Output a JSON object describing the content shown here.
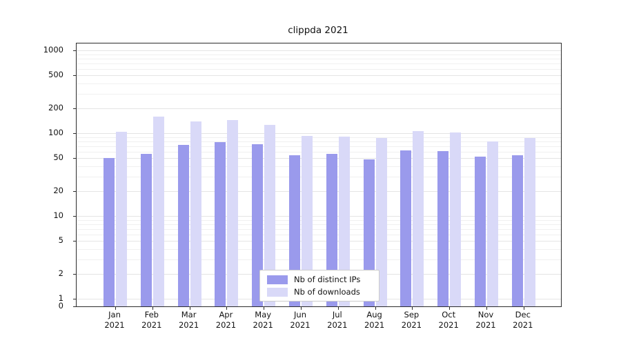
{
  "title": "clippda 2021",
  "chart_data": {
    "type": "bar",
    "title": "clippda 2021",
    "y_scale": "symlog",
    "ylim": [
      0,
      1200
    ],
    "grid": true,
    "legend_position": "lower center",
    "categories": [
      "Jan 2021",
      "Feb 2021",
      "Mar 2021",
      "Apr 2021",
      "May 2021",
      "Jun 2021",
      "Jul 2021",
      "Aug 2021",
      "Sep 2021",
      "Oct 2021",
      "Nov 2021",
      "Dec 2021"
    ],
    "y_ticks": [
      0,
      1,
      2,
      5,
      10,
      20,
      50,
      100,
      200,
      500,
      1000
    ],
    "series": [
      {
        "name": "Nb of distinct IPs",
        "color": "#9a9aec",
        "values": [
          50,
          56,
          72,
          78,
          73,
          54,
          56,
          48,
          62,
          61,
          52,
          54
        ]
      },
      {
        "name": "Nb of downloads",
        "color": "#d9d9f8",
        "values": [
          105,
          158,
          140,
          145,
          125,
          93,
          91,
          87,
          107,
          102,
          80,
          88
        ]
      }
    ]
  }
}
